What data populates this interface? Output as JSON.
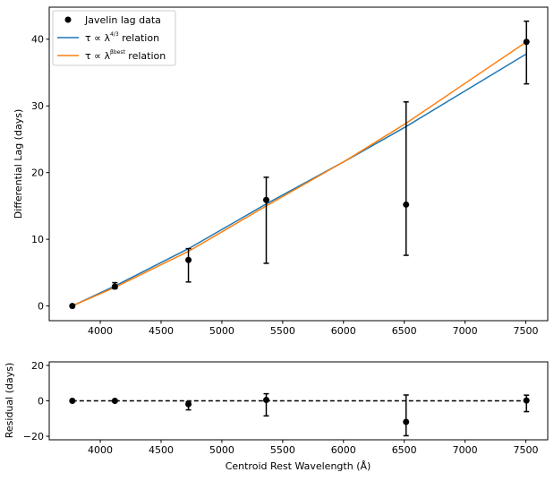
{
  "chart_data": [
    {
      "type": "scatter",
      "panel": "main",
      "xlabel": "",
      "ylabel": "Differential Lag (days)",
      "xlim": [
        3580,
        7680
      ],
      "ylim": [
        -2.2,
        44.8
      ],
      "xticks": [
        4000,
        4500,
        5000,
        5500,
        6000,
        6500,
        7000,
        7500
      ],
      "yticks": [
        0,
        10,
        20,
        30,
        40
      ],
      "legend_position": "top-left",
      "series": [
        {
          "name": "Javelin lag data",
          "kind": "errorbar",
          "color": "#000000",
          "x": [
            3770,
            4120,
            4725,
            5365,
            6515,
            7505
          ],
          "y": [
            0,
            2.9,
            6.9,
            15.9,
            15.2,
            39.6
          ],
          "yerr_low": [
            0,
            0.3,
            3.3,
            9.5,
            7.6,
            6.3
          ],
          "yerr_high": [
            0,
            0.6,
            1.7,
            3.4,
            15.4,
            3.1
          ]
        },
        {
          "name": "τ ∝ λ^(4/3) relation",
          "kind": "line",
          "color": "#1f77b4",
          "x": [
            3770,
            4120,
            4725,
            5365,
            6000,
            6515,
            7505
          ],
          "y": [
            0,
            3.0,
            8.6,
            15.3,
            21.6,
            26.9,
            37.8
          ]
        },
        {
          "name": "τ ∝ λ^(β_best) relation",
          "kind": "line",
          "color": "#ff7f0e",
          "x": [
            3770,
            4120,
            4725,
            5365,
            6000,
            6515,
            7505
          ],
          "y": [
            0,
            2.8,
            8.2,
            15.0,
            21.6,
            27.4,
            39.6
          ]
        }
      ]
    },
    {
      "type": "scatter",
      "panel": "residual",
      "xlabel": "Centroid Rest Wavelength (Å)",
      "ylabel": "Residual (days)",
      "xlim": [
        3580,
        7680
      ],
      "ylim": [
        -22,
        22
      ],
      "xticks": [
        4000,
        4500,
        5000,
        5500,
        6000,
        6500,
        7000,
        7500
      ],
      "yticks": [
        -20,
        0,
        20
      ],
      "reference_line": {
        "y": 0,
        "style": "dashed",
        "color": "#000000"
      },
      "series": [
        {
          "name": "Residual",
          "kind": "errorbar",
          "color": "#000000",
          "x": [
            3770,
            4120,
            4725,
            5365,
            6515,
            7505
          ],
          "y": [
            0,
            0,
            -1.9,
            0.5,
            -11.9,
            0.2
          ],
          "yerr_low": [
            0,
            0,
            3.2,
            9.0,
            7.8,
            6.3
          ],
          "yerr_high": [
            0,
            0,
            1.4,
            3.5,
            15.2,
            3.0
          ]
        }
      ]
    }
  ],
  "legend": {
    "items": [
      {
        "prefix": "Javelin lag data",
        "sup": "",
        "suffix": "",
        "color": "#000000",
        "marker": "circle"
      },
      {
        "prefix": "τ ∝ λ",
        "sup": "4/3",
        "suffix": " relation",
        "color": "#1f77b4",
        "marker": "line"
      },
      {
        "prefix": "τ ∝ λ",
        "sup": "βbest",
        "suffix": " relation",
        "color": "#ff7f0e",
        "marker": "line"
      }
    ]
  }
}
